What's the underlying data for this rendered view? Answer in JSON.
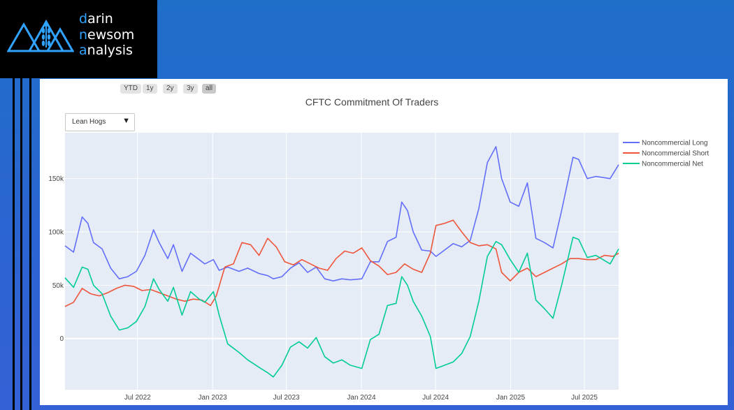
{
  "logo": {
    "lines": [
      {
        "first": "d",
        "rest": "arin"
      },
      {
        "first": "n",
        "rest": "ewsom"
      },
      {
        "first": "a",
        "rest": "nalysis"
      }
    ]
  },
  "range_selector": {
    "buttons": [
      {
        "label": "YTD",
        "active": false
      },
      {
        "label": "1y",
        "active": false
      },
      {
        "label": "2y",
        "active": false
      },
      {
        "label": "3y",
        "active": false
      },
      {
        "label": "all",
        "active": true
      }
    ]
  },
  "dropdown": {
    "selected": "Lean Hogs"
  },
  "colors": {
    "plot_bg": "#e5ecf6",
    "grid": "#ffffff"
  },
  "chart_data": {
    "type": "line",
    "title": "CFTC Commitment Of Traders",
    "xlabel": "",
    "ylabel": "",
    "x_ticks": [
      "Jul 2022",
      "Jan 2023",
      "Jul 2023",
      "Jan 2024",
      "Jul 2024",
      "Jan 2025",
      "Jul 2025"
    ],
    "y_ticks": [
      {
        "value": 0,
        "label": "0"
      },
      {
        "value": 50000,
        "label": "50k"
      },
      {
        "value": 100000,
        "label": "100k"
      },
      {
        "value": 150000,
        "label": "150k"
      }
    ],
    "ylim": [
      -48000,
      193000
    ],
    "xlim": [
      "2022-01-04",
      "2025-09-23"
    ],
    "grid": true,
    "legend_placement": "top-right",
    "series": [
      {
        "name": "Noncommercial Long",
        "color": "#636efa",
        "points": [
          [
            "2022-01-04",
            87000
          ],
          [
            "2022-01-25",
            81000
          ],
          [
            "2022-02-15",
            114000
          ],
          [
            "2022-03-01",
            108000
          ],
          [
            "2022-03-15",
            90000
          ],
          [
            "2022-04-05",
            84000
          ],
          [
            "2022-04-26",
            66000
          ],
          [
            "2022-05-17",
            56000
          ],
          [
            "2022-06-07",
            58000
          ],
          [
            "2022-06-28",
            63000
          ],
          [
            "2022-07-19",
            78000
          ],
          [
            "2022-08-09",
            102000
          ],
          [
            "2022-08-23",
            90000
          ],
          [
            "2022-09-13",
            75000
          ],
          [
            "2022-09-27",
            88000
          ],
          [
            "2022-10-18",
            63000
          ],
          [
            "2022-11-08",
            80000
          ],
          [
            "2022-11-29",
            74000
          ],
          [
            "2022-12-13",
            70000
          ],
          [
            "2023-01-03",
            74000
          ],
          [
            "2023-01-17",
            64000
          ],
          [
            "2023-02-07",
            67000
          ],
          [
            "2023-03-07",
            63000
          ],
          [
            "2023-03-28",
            66000
          ],
          [
            "2023-04-25",
            61000
          ],
          [
            "2023-05-16",
            59000
          ],
          [
            "2023-05-30",
            56000
          ],
          [
            "2023-06-20",
            58000
          ],
          [
            "2023-07-11",
            66000
          ],
          [
            "2023-08-01",
            71000
          ],
          [
            "2023-08-22",
            62000
          ],
          [
            "2023-09-12",
            67000
          ],
          [
            "2023-10-03",
            56000
          ],
          [
            "2023-10-24",
            54000
          ],
          [
            "2023-11-14",
            56000
          ],
          [
            "2023-12-05",
            55000
          ],
          [
            "2024-01-02",
            56000
          ],
          [
            "2024-01-23",
            72000
          ],
          [
            "2024-02-13",
            72000
          ],
          [
            "2024-03-05",
            91000
          ],
          [
            "2024-03-26",
            95000
          ],
          [
            "2024-04-09",
            128000
          ],
          [
            "2024-04-23",
            120000
          ],
          [
            "2024-05-07",
            100000
          ],
          [
            "2024-05-28",
            83000
          ],
          [
            "2024-06-18",
            82000
          ],
          [
            "2024-07-02",
            77000
          ],
          [
            "2024-07-23",
            83000
          ],
          [
            "2024-08-13",
            89000
          ],
          [
            "2024-09-03",
            86000
          ],
          [
            "2024-09-24",
            92000
          ],
          [
            "2024-10-15",
            122000
          ],
          [
            "2024-11-05",
            165000
          ],
          [
            "2024-11-26",
            180000
          ],
          [
            "2024-12-10",
            150000
          ],
          [
            "2024-12-31",
            128000
          ],
          [
            "2025-01-21",
            124000
          ],
          [
            "2025-02-11",
            146000
          ],
          [
            "2025-03-04",
            94000
          ],
          [
            "2025-03-25",
            90000
          ],
          [
            "2025-04-15",
            85000
          ],
          [
            "2025-05-06",
            120000
          ],
          [
            "2025-06-03",
            170000
          ],
          [
            "2025-06-17",
            168000
          ],
          [
            "2025-07-08",
            150000
          ],
          [
            "2025-07-29",
            152000
          ],
          [
            "2025-09-02",
            150000
          ],
          [
            "2025-09-23",
            163000
          ]
        ]
      },
      {
        "name": "Noncommercial Short",
        "color": "#ef553b",
        "points": [
          [
            "2022-01-04",
            30000
          ],
          [
            "2022-01-25",
            34000
          ],
          [
            "2022-02-15",
            47000
          ],
          [
            "2022-03-08",
            42000
          ],
          [
            "2022-03-29",
            40000
          ],
          [
            "2022-04-19",
            43000
          ],
          [
            "2022-05-10",
            47000
          ],
          [
            "2022-05-31",
            50000
          ],
          [
            "2022-06-21",
            49000
          ],
          [
            "2022-07-12",
            45000
          ],
          [
            "2022-08-02",
            46000
          ],
          [
            "2022-08-23",
            43000
          ],
          [
            "2022-09-13",
            40000
          ],
          [
            "2022-10-04",
            37000
          ],
          [
            "2022-10-25",
            35000
          ],
          [
            "2022-11-15",
            37000
          ],
          [
            "2022-12-06",
            36000
          ],
          [
            "2022-12-27",
            31000
          ],
          [
            "2023-01-10",
            40000
          ],
          [
            "2023-01-31",
            67000
          ],
          [
            "2023-02-21",
            70000
          ],
          [
            "2023-03-14",
            90000
          ],
          [
            "2023-04-04",
            88000
          ],
          [
            "2023-04-25",
            78000
          ],
          [
            "2023-05-16",
            94000
          ],
          [
            "2023-06-06",
            86000
          ],
          [
            "2023-06-27",
            72000
          ],
          [
            "2023-07-18",
            69000
          ],
          [
            "2023-08-08",
            74000
          ],
          [
            "2023-08-29",
            70000
          ],
          [
            "2023-09-19",
            66000
          ],
          [
            "2023-10-10",
            64000
          ],
          [
            "2023-10-31",
            75000
          ],
          [
            "2023-11-21",
            82000
          ],
          [
            "2023-12-12",
            80000
          ],
          [
            "2024-01-02",
            85000
          ],
          [
            "2024-01-23",
            73000
          ],
          [
            "2024-02-13",
            68000
          ],
          [
            "2024-03-05",
            60000
          ],
          [
            "2024-03-26",
            62000
          ],
          [
            "2024-04-16",
            70000
          ],
          [
            "2024-05-07",
            65000
          ],
          [
            "2024-05-28",
            62000
          ],
          [
            "2024-06-18",
            80000
          ],
          [
            "2024-07-02",
            106000
          ],
          [
            "2024-07-23",
            108000
          ],
          [
            "2024-08-13",
            111000
          ],
          [
            "2024-09-03",
            100000
          ],
          [
            "2024-09-24",
            90000
          ],
          [
            "2024-10-15",
            87000
          ],
          [
            "2024-11-05",
            88000
          ],
          [
            "2024-11-26",
            84000
          ],
          [
            "2024-12-10",
            62000
          ],
          [
            "2024-12-31",
            54000
          ],
          [
            "2025-01-21",
            62000
          ],
          [
            "2025-02-11",
            66000
          ],
          [
            "2025-03-04",
            58000
          ],
          [
            "2025-03-25",
            62000
          ],
          [
            "2025-04-15",
            66000
          ],
          [
            "2025-05-06",
            70000
          ],
          [
            "2025-05-27",
            75000
          ],
          [
            "2025-06-17",
            75000
          ],
          [
            "2025-07-08",
            74000
          ],
          [
            "2025-07-29",
            74000
          ],
          [
            "2025-08-19",
            78000
          ],
          [
            "2025-09-09",
            77000
          ],
          [
            "2025-09-23",
            80000
          ]
        ]
      },
      {
        "name": "Noncommercial Net",
        "color": "#00cc96",
        "points": [
          [
            "2022-01-04",
            57000
          ],
          [
            "2022-01-25",
            48000
          ],
          [
            "2022-02-15",
            67000
          ],
          [
            "2022-03-01",
            65000
          ],
          [
            "2022-03-15",
            50000
          ],
          [
            "2022-04-05",
            42000
          ],
          [
            "2022-04-26",
            21000
          ],
          [
            "2022-05-17",
            8000
          ],
          [
            "2022-06-07",
            10000
          ],
          [
            "2022-06-28",
            16000
          ],
          [
            "2022-07-19",
            30000
          ],
          [
            "2022-08-09",
            56000
          ],
          [
            "2022-08-23",
            46000
          ],
          [
            "2022-09-13",
            35000
          ],
          [
            "2022-09-27",
            48000
          ],
          [
            "2022-10-18",
            22000
          ],
          [
            "2022-11-08",
            44000
          ],
          [
            "2022-11-29",
            37000
          ],
          [
            "2022-12-13",
            34000
          ],
          [
            "2023-01-03",
            44000
          ],
          [
            "2023-01-17",
            22000
          ],
          [
            "2023-02-07",
            -5000
          ],
          [
            "2023-03-07",
            -13000
          ],
          [
            "2023-03-28",
            -20000
          ],
          [
            "2023-04-25",
            -27000
          ],
          [
            "2023-05-16",
            -32000
          ],
          [
            "2023-05-30",
            -36000
          ],
          [
            "2023-06-20",
            -25000
          ],
          [
            "2023-07-11",
            -8000
          ],
          [
            "2023-08-01",
            -3000
          ],
          [
            "2023-08-22",
            -9000
          ],
          [
            "2023-09-12",
            1000
          ],
          [
            "2023-10-03",
            -17000
          ],
          [
            "2023-10-24",
            -23000
          ],
          [
            "2023-11-14",
            -20000
          ],
          [
            "2023-12-05",
            -25000
          ],
          [
            "2024-01-02",
            -28000
          ],
          [
            "2024-01-23",
            -1000
          ],
          [
            "2024-02-13",
            4000
          ],
          [
            "2024-03-05",
            31000
          ],
          [
            "2024-03-26",
            33000
          ],
          [
            "2024-04-09",
            58000
          ],
          [
            "2024-04-23",
            50000
          ],
          [
            "2024-05-07",
            35000
          ],
          [
            "2024-05-28",
            21000
          ],
          [
            "2024-06-18",
            2000
          ],
          [
            "2024-07-02",
            -28000
          ],
          [
            "2024-07-23",
            -25000
          ],
          [
            "2024-08-13",
            -22000
          ],
          [
            "2024-09-03",
            -14000
          ],
          [
            "2024-09-24",
            2000
          ],
          [
            "2024-10-15",
            35000
          ],
          [
            "2024-11-05",
            77000
          ],
          [
            "2024-11-26",
            91000
          ],
          [
            "2024-12-10",
            88000
          ],
          [
            "2024-12-31",
            74000
          ],
          [
            "2025-01-21",
            62000
          ],
          [
            "2025-02-11",
            80000
          ],
          [
            "2025-03-04",
            36000
          ],
          [
            "2025-03-25",
            28000
          ],
          [
            "2025-04-15",
            19000
          ],
          [
            "2025-05-06",
            50000
          ],
          [
            "2025-06-03",
            95000
          ],
          [
            "2025-06-17",
            93000
          ],
          [
            "2025-07-08",
            76000
          ],
          [
            "2025-07-29",
            78000
          ],
          [
            "2025-09-02",
            70000
          ],
          [
            "2025-09-23",
            84000
          ]
        ]
      }
    ]
  }
}
